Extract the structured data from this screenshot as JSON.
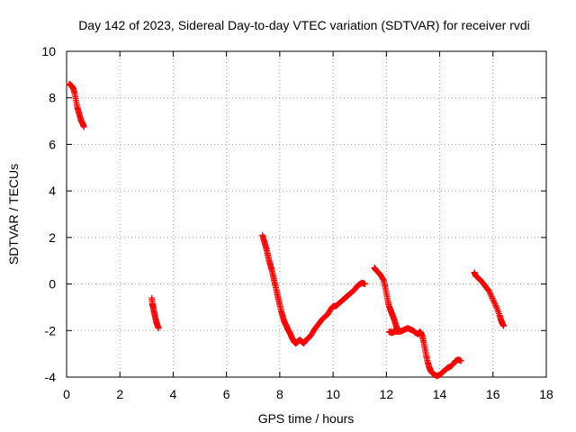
{
  "chart_data": {
    "type": "scatter",
    "title": "Day 142 of 2023, Sidereal Day-to-day VTEC variation (SDTVAR) for receiver rvdi",
    "xlabel": "GPS time / hours",
    "ylabel": "SDTVAR / TECUs",
    "xlim": [
      0,
      18
    ],
    "ylim": [
      -4,
      10
    ],
    "xticks": [
      "0",
      "2",
      "4",
      "6",
      "8",
      "10",
      "12",
      "14",
      "16",
      "18"
    ],
    "yticks": [
      "-4",
      "-2",
      "0",
      "2",
      "4",
      "6",
      "8",
      "10"
    ],
    "grid": true,
    "marker": "+",
    "color": "#ff0000",
    "series": [
      {
        "name": "SDTVAR",
        "segments": [
          [
            [
              0.1,
              8.6
            ],
            [
              0.15,
              8.55
            ],
            [
              0.2,
              8.5
            ],
            [
              0.25,
              8.4
            ],
            [
              0.3,
              8.2
            ],
            [
              0.35,
              7.9
            ],
            [
              0.4,
              7.6
            ],
            [
              0.45,
              7.4
            ],
            [
              0.5,
              7.2
            ],
            [
              0.55,
              7.0
            ],
            [
              0.6,
              6.9
            ],
            [
              0.65,
              6.75
            ]
          ],
          [
            [
              3.2,
              -0.6
            ],
            [
              3.22,
              -0.85
            ],
            [
              3.25,
              -1.0
            ],
            [
              3.28,
              -1.2
            ],
            [
              3.32,
              -1.4
            ],
            [
              3.36,
              -1.6
            ],
            [
              3.4,
              -1.75
            ],
            [
              3.45,
              -1.9
            ]
          ],
          [
            [
              7.35,
              2.1
            ],
            [
              7.4,
              1.9
            ],
            [
              7.45,
              1.7
            ],
            [
              7.5,
              1.5
            ],
            [
              7.55,
              1.25
            ],
            [
              7.6,
              1.0
            ],
            [
              7.65,
              0.8
            ],
            [
              7.7,
              0.6
            ],
            [
              7.75,
              0.35
            ],
            [
              7.8,
              0.1
            ],
            [
              7.85,
              -0.15
            ],
            [
              7.9,
              -0.4
            ],
            [
              7.95,
              -0.65
            ],
            [
              8.0,
              -0.9
            ],
            [
              8.05,
              -1.15
            ],
            [
              8.1,
              -1.35
            ],
            [
              8.15,
              -1.55
            ],
            [
              8.2,
              -1.7
            ],
            [
              8.25,
              -1.8
            ],
            [
              8.3,
              -1.95
            ],
            [
              8.35,
              -2.05
            ],
            [
              8.4,
              -2.15
            ],
            [
              8.45,
              -2.3
            ],
            [
              8.5,
              -2.4
            ],
            [
              8.55,
              -2.5
            ],
            [
              8.6,
              -2.55
            ],
            [
              8.65,
              -2.5
            ],
            [
              8.7,
              -2.45
            ],
            [
              8.75,
              -2.4
            ],
            [
              8.8,
              -2.45
            ],
            [
              8.85,
              -2.5
            ],
            [
              8.9,
              -2.55
            ],
            [
              8.95,
              -2.45
            ],
            [
              9.0,
              -2.4
            ],
            [
              9.1,
              -2.3
            ],
            [
              9.2,
              -2.15
            ],
            [
              9.3,
              -1.95
            ],
            [
              9.4,
              -1.8
            ],
            [
              9.5,
              -1.65
            ],
            [
              9.6,
              -1.5
            ],
            [
              9.7,
              -1.4
            ],
            [
              9.8,
              -1.3
            ],
            [
              9.9,
              -1.1
            ],
            [
              10.0,
              -0.95
            ],
            [
              10.1,
              -0.95
            ],
            [
              10.2,
              -0.85
            ],
            [
              10.3,
              -0.75
            ],
            [
              10.4,
              -0.65
            ],
            [
              10.5,
              -0.55
            ],
            [
              10.6,
              -0.45
            ],
            [
              10.7,
              -0.35
            ],
            [
              10.8,
              -0.25
            ],
            [
              10.9,
              -0.1
            ],
            [
              11.0,
              0.0
            ],
            [
              11.1,
              0.05
            ],
            [
              11.2,
              0.0
            ]
          ],
          [
            [
              11.55,
              0.7
            ],
            [
              11.6,
              0.6
            ],
            [
              11.7,
              0.5
            ],
            [
              11.8,
              0.35
            ],
            [
              11.9,
              0.15
            ],
            [
              11.95,
              -0.1
            ],
            [
              12.0,
              -0.4
            ],
            [
              12.05,
              -0.7
            ],
            [
              12.1,
              -0.95
            ],
            [
              12.15,
              -1.1
            ],
            [
              12.2,
              -1.25
            ],
            [
              12.25,
              -1.4
            ],
            [
              12.3,
              -1.55
            ],
            [
              12.35,
              -1.75
            ],
            [
              12.4,
              -1.9
            ],
            [
              12.45,
              -2.0
            ],
            [
              12.1,
              -2.05
            ],
            [
              12.2,
              -2.1
            ],
            [
              12.3,
              -2.05
            ],
            [
              12.5,
              -2.05
            ],
            [
              12.6,
              -2.0
            ],
            [
              12.7,
              -1.95
            ],
            [
              12.8,
              -1.9
            ],
            [
              12.9,
              -1.95
            ],
            [
              13.0,
              -2.0
            ],
            [
              13.1,
              -2.1
            ],
            [
              13.2,
              -2.15
            ],
            [
              13.25,
              -2.05
            ],
            [
              13.3,
              -2.1
            ],
            [
              13.35,
              -2.25
            ],
            [
              13.4,
              -2.5
            ],
            [
              13.45,
              -2.8
            ],
            [
              13.5,
              -3.1
            ],
            [
              13.55,
              -3.35
            ],
            [
              13.6,
              -3.55
            ],
            [
              13.65,
              -3.7
            ],
            [
              13.7,
              -3.8
            ],
            [
              13.8,
              -3.9
            ],
            [
              13.9,
              -3.95
            ],
            [
              14.0,
              -3.9
            ],
            [
              14.1,
              -3.8
            ],
            [
              14.2,
              -3.7
            ],
            [
              14.3,
              -3.6
            ],
            [
              14.4,
              -3.55
            ],
            [
              14.5,
              -3.45
            ],
            [
              14.6,
              -3.3
            ],
            [
              14.7,
              -3.25
            ],
            [
              14.8,
              -3.3
            ]
          ],
          [
            [
              15.3,
              0.5
            ],
            [
              15.35,
              0.35
            ],
            [
              15.45,
              0.25
            ],
            [
              15.55,
              0.15
            ],
            [
              15.65,
              0.0
            ],
            [
              15.75,
              -0.15
            ],
            [
              15.85,
              -0.3
            ],
            [
              15.95,
              -0.55
            ],
            [
              16.05,
              -0.8
            ],
            [
              16.15,
              -1.05
            ],
            [
              16.25,
              -1.35
            ],
            [
              16.3,
              -1.55
            ],
            [
              16.35,
              -1.7
            ],
            [
              16.4,
              -1.8
            ]
          ]
        ]
      }
    ]
  }
}
